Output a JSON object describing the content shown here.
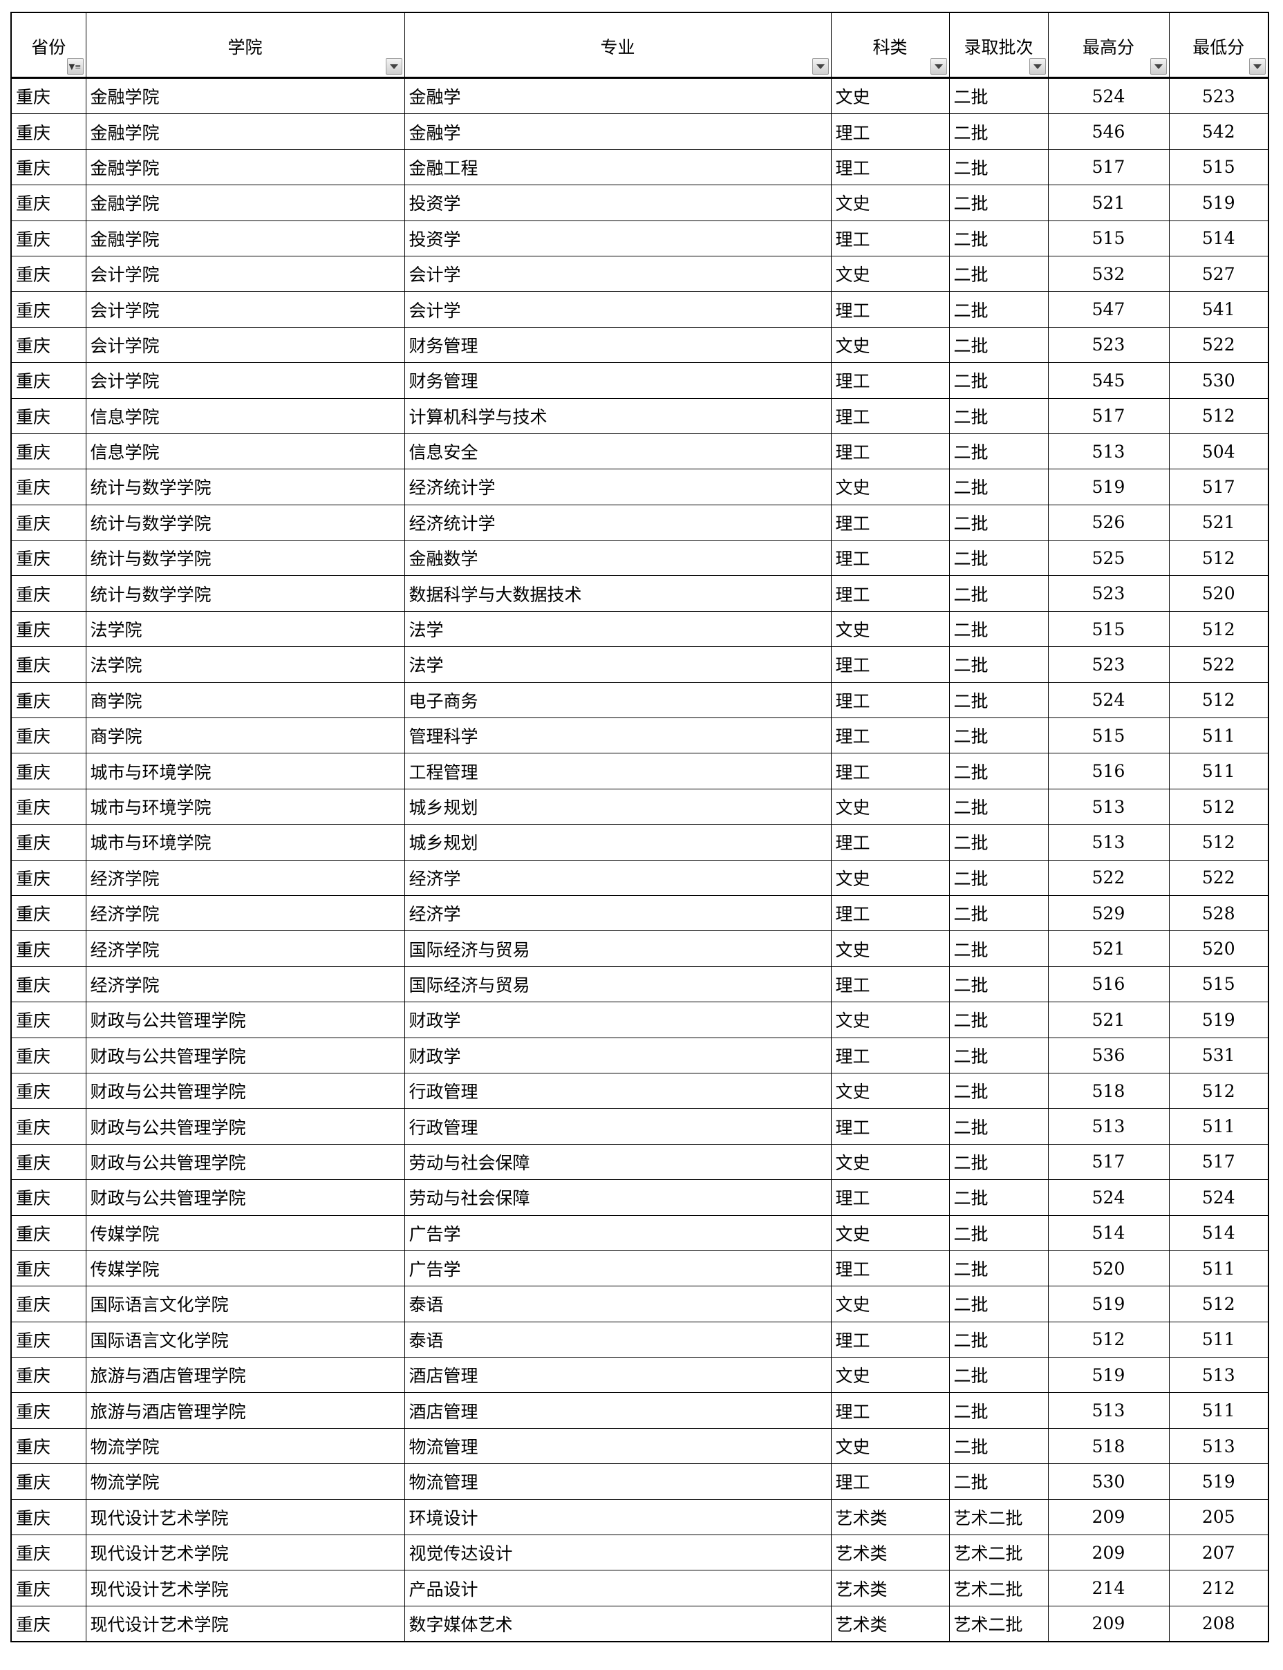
{
  "headers": [
    "省份",
    "学院",
    "专业",
    "科类",
    "录取批次",
    "最高分",
    "最低分"
  ],
  "filter_icons": [
    "filter-active-icon",
    "dropdown-arrow-icon",
    "dropdown-arrow-icon",
    "dropdown-arrow-icon",
    "dropdown-arrow-icon",
    "dropdown-arrow-icon",
    "dropdown-arrow-icon"
  ],
  "rows": [
    [
      "重庆",
      "金融学院",
      "金融学",
      "文史",
      "二批",
      "524",
      "523"
    ],
    [
      "重庆",
      "金融学院",
      "金融学",
      "理工",
      "二批",
      "546",
      "542"
    ],
    [
      "重庆",
      "金融学院",
      "金融工程",
      "理工",
      "二批",
      "517",
      "515"
    ],
    [
      "重庆",
      "金融学院",
      "投资学",
      "文史",
      "二批",
      "521",
      "519"
    ],
    [
      "重庆",
      "金融学院",
      "投资学",
      "理工",
      "二批",
      "515",
      "514"
    ],
    [
      "重庆",
      "会计学院",
      "会计学",
      "文史",
      "二批",
      "532",
      "527"
    ],
    [
      "重庆",
      "会计学院",
      "会计学",
      "理工",
      "二批",
      "547",
      "541"
    ],
    [
      "重庆",
      "会计学院",
      "财务管理",
      "文史",
      "二批",
      "523",
      "522"
    ],
    [
      "重庆",
      "会计学院",
      "财务管理",
      "理工",
      "二批",
      "545",
      "530"
    ],
    [
      "重庆",
      "信息学院",
      "计算机科学与技术",
      "理工",
      "二批",
      "517",
      "512"
    ],
    [
      "重庆",
      "信息学院",
      "信息安全",
      "理工",
      "二批",
      "513",
      "504"
    ],
    [
      "重庆",
      "统计与数学学院",
      "经济统计学",
      "文史",
      "二批",
      "519",
      "517"
    ],
    [
      "重庆",
      "统计与数学学院",
      "经济统计学",
      "理工",
      "二批",
      "526",
      "521"
    ],
    [
      "重庆",
      "统计与数学学院",
      "金融数学",
      "理工",
      "二批",
      "525",
      "512"
    ],
    [
      "重庆",
      "统计与数学学院",
      "数据科学与大数据技术",
      "理工",
      "二批",
      "523",
      "520"
    ],
    [
      "重庆",
      "法学院",
      "法学",
      "文史",
      "二批",
      "515",
      "512"
    ],
    [
      "重庆",
      "法学院",
      "法学",
      "理工",
      "二批",
      "523",
      "522"
    ],
    [
      "重庆",
      "商学院",
      "电子商务",
      "理工",
      "二批",
      "524",
      "512"
    ],
    [
      "重庆",
      "商学院",
      "管理科学",
      "理工",
      "二批",
      "515",
      "511"
    ],
    [
      "重庆",
      "城市与环境学院",
      "工程管理",
      "理工",
      "二批",
      "516",
      "511"
    ],
    [
      "重庆",
      "城市与环境学院",
      "城乡规划",
      "文史",
      "二批",
      "513",
      "512"
    ],
    [
      "重庆",
      "城市与环境学院",
      "城乡规划",
      "理工",
      "二批",
      "513",
      "512"
    ],
    [
      "重庆",
      "经济学院",
      "经济学",
      "文史",
      "二批",
      "522",
      "522"
    ],
    [
      "重庆",
      "经济学院",
      "经济学",
      "理工",
      "二批",
      "529",
      "528"
    ],
    [
      "重庆",
      "经济学院",
      "国际经济与贸易",
      "文史",
      "二批",
      "521",
      "520"
    ],
    [
      "重庆",
      "经济学院",
      "国际经济与贸易",
      "理工",
      "二批",
      "516",
      "515"
    ],
    [
      "重庆",
      "财政与公共管理学院",
      "财政学",
      "文史",
      "二批",
      "521",
      "519"
    ],
    [
      "重庆",
      "财政与公共管理学院",
      "财政学",
      "理工",
      "二批",
      "536",
      "531"
    ],
    [
      "重庆",
      "财政与公共管理学院",
      "行政管理",
      "文史",
      "二批",
      "518",
      "512"
    ],
    [
      "重庆",
      "财政与公共管理学院",
      "行政管理",
      "理工",
      "二批",
      "513",
      "511"
    ],
    [
      "重庆",
      "财政与公共管理学院",
      "劳动与社会保障",
      "文史",
      "二批",
      "517",
      "517"
    ],
    [
      "重庆",
      "财政与公共管理学院",
      "劳动与社会保障",
      "理工",
      "二批",
      "524",
      "524"
    ],
    [
      "重庆",
      "传媒学院",
      "广告学",
      "文史",
      "二批",
      "514",
      "514"
    ],
    [
      "重庆",
      "传媒学院",
      "广告学",
      "理工",
      "二批",
      "520",
      "511"
    ],
    [
      "重庆",
      "国际语言文化学院",
      "泰语",
      "文史",
      "二批",
      "519",
      "512"
    ],
    [
      "重庆",
      "国际语言文化学院",
      "泰语",
      "理工",
      "二批",
      "512",
      "511"
    ],
    [
      "重庆",
      "旅游与酒店管理学院",
      "酒店管理",
      "文史",
      "二批",
      "519",
      "513"
    ],
    [
      "重庆",
      "旅游与酒店管理学院",
      "酒店管理",
      "理工",
      "二批",
      "513",
      "511"
    ],
    [
      "重庆",
      "物流学院",
      "物流管理",
      "文史",
      "二批",
      "518",
      "513"
    ],
    [
      "重庆",
      "物流学院",
      "物流管理",
      "理工",
      "二批",
      "530",
      "519"
    ],
    [
      "重庆",
      "现代设计艺术学院",
      "环境设计",
      "艺术类",
      "艺术二批",
      "209",
      "205"
    ],
    [
      "重庆",
      "现代设计艺术学院",
      "视觉传达设计",
      "艺术类",
      "艺术二批",
      "209",
      "207"
    ],
    [
      "重庆",
      "现代设计艺术学院",
      "产品设计",
      "艺术类",
      "艺术二批",
      "214",
      "212"
    ],
    [
      "重庆",
      "现代设计艺术学院",
      "数字媒体艺术",
      "艺术类",
      "艺术二批",
      "209",
      "208"
    ]
  ]
}
